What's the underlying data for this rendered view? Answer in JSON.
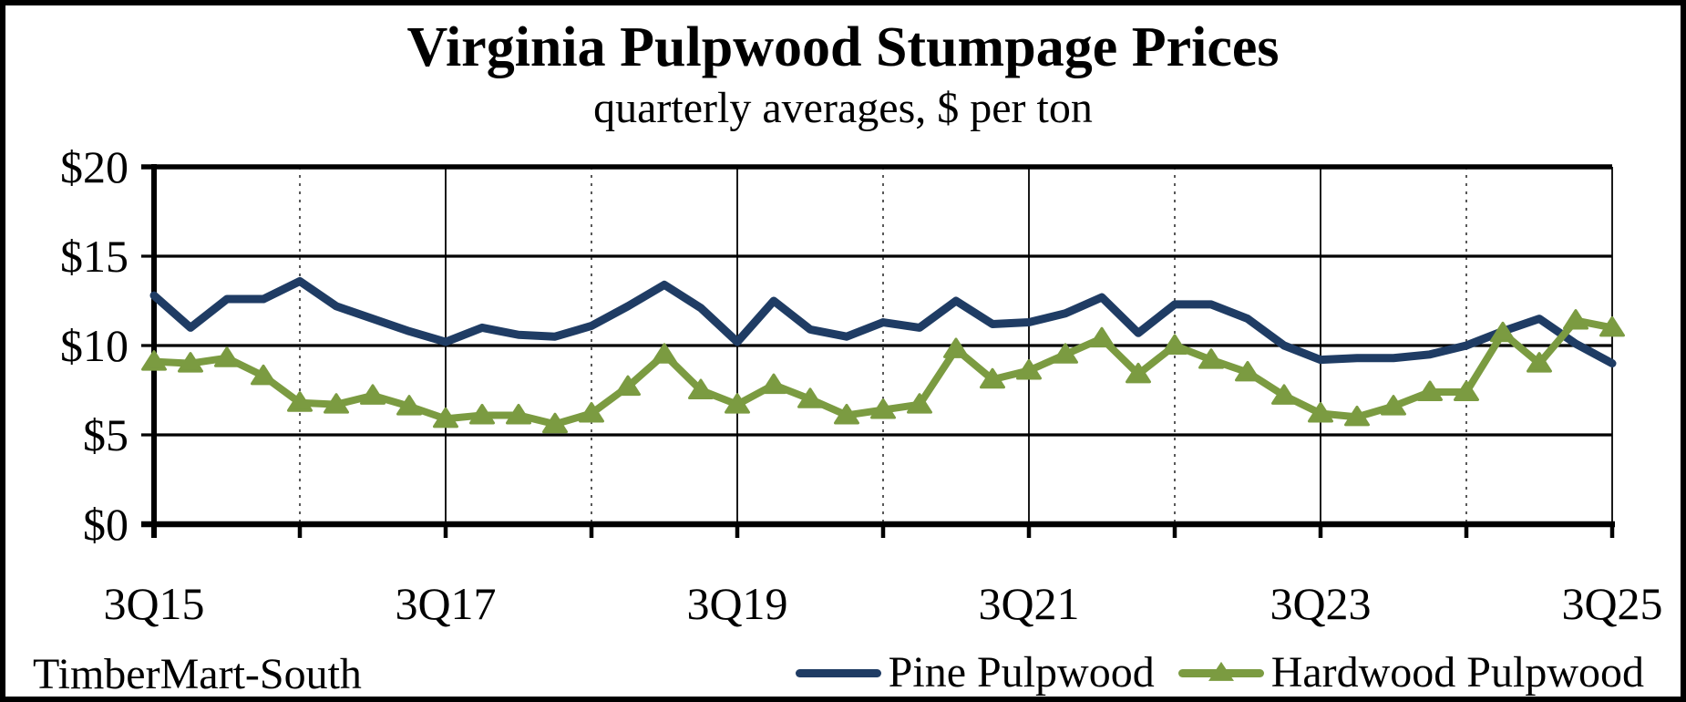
{
  "title": "Virginia Pulpwood Stumpage Prices",
  "subtitle": "quarterly averages, $ per ton",
  "source_label": "TimberMart-South",
  "colors": {
    "pine": "#1f3c64",
    "hardwood": "#7b9b41",
    "axis": "#000000",
    "dashed_grid": "#222222",
    "background": "#ffffff"
  },
  "chart_data": {
    "type": "line",
    "x": [
      "3Q15",
      "4Q15",
      "1Q16",
      "2Q16",
      "3Q16",
      "4Q16",
      "1Q17",
      "2Q17",
      "3Q17",
      "4Q17",
      "1Q18",
      "2Q18",
      "3Q18",
      "4Q18",
      "1Q19",
      "2Q19",
      "3Q19",
      "4Q19",
      "1Q20",
      "2Q20",
      "3Q20",
      "4Q20",
      "1Q21",
      "2Q21",
      "3Q21",
      "4Q21",
      "1Q22",
      "2Q22",
      "3Q22",
      "4Q22",
      "1Q23",
      "2Q23",
      "3Q23",
      "4Q23",
      "1Q24",
      "2Q24",
      "3Q24",
      "4Q24",
      "1Q25",
      "2Q25",
      "3Q25"
    ],
    "series": [
      {
        "name": "Pine Pulpwood",
        "color": "#1f3c64",
        "marker": "none",
        "values": [
          12.8,
          11.0,
          12.6,
          12.6,
          13.6,
          12.2,
          11.5,
          10.8,
          10.2,
          11.0,
          10.6,
          10.5,
          11.1,
          12.2,
          13.4,
          12.1,
          10.2,
          12.5,
          10.9,
          10.5,
          11.3,
          11.0,
          12.5,
          11.2,
          11.3,
          11.8,
          12.7,
          10.7,
          12.3,
          12.3,
          11.5,
          10.0,
          9.2,
          9.3,
          9.3,
          9.5,
          10.0,
          10.8,
          11.5,
          10.1,
          9.0
        ]
      },
      {
        "name": "Hardwood Pulpwood",
        "color": "#7b9b41",
        "marker": "triangle",
        "values": [
          9.1,
          9.0,
          9.3,
          8.3,
          6.8,
          6.7,
          7.2,
          6.6,
          5.9,
          6.1,
          6.1,
          5.6,
          6.2,
          7.7,
          9.5,
          7.5,
          6.7,
          7.8,
          7.0,
          6.1,
          6.4,
          6.7,
          9.8,
          8.1,
          8.6,
          9.5,
          10.4,
          8.4,
          10.0,
          9.2,
          8.5,
          7.2,
          6.2,
          6.0,
          6.6,
          7.4,
          7.4,
          10.7,
          9.0,
          11.4,
          11.0
        ]
      }
    ],
    "ylim": [
      0,
      20
    ],
    "y_ticks": [
      {
        "label": "$0",
        "value": 0
      },
      {
        "label": "$5",
        "value": 5
      },
      {
        "label": "$10",
        "value": 10
      },
      {
        "label": "$15",
        "value": 15
      },
      {
        "label": "$20",
        "value": 20
      }
    ],
    "x_major_tick_indices": [
      0,
      8,
      16,
      24,
      32,
      40
    ],
    "x_major_tick_labels": [
      "3Q15",
      "3Q17",
      "3Q19",
      "3Q21",
      "3Q23",
      "3Q25"
    ],
    "x_minor_tick_indices": [
      4,
      12,
      20,
      28,
      36
    ],
    "grid": {
      "horizontal": "solid",
      "vertical_major": "solid",
      "vertical_minor": "dashed"
    },
    "legend_position": "bottom-right"
  }
}
